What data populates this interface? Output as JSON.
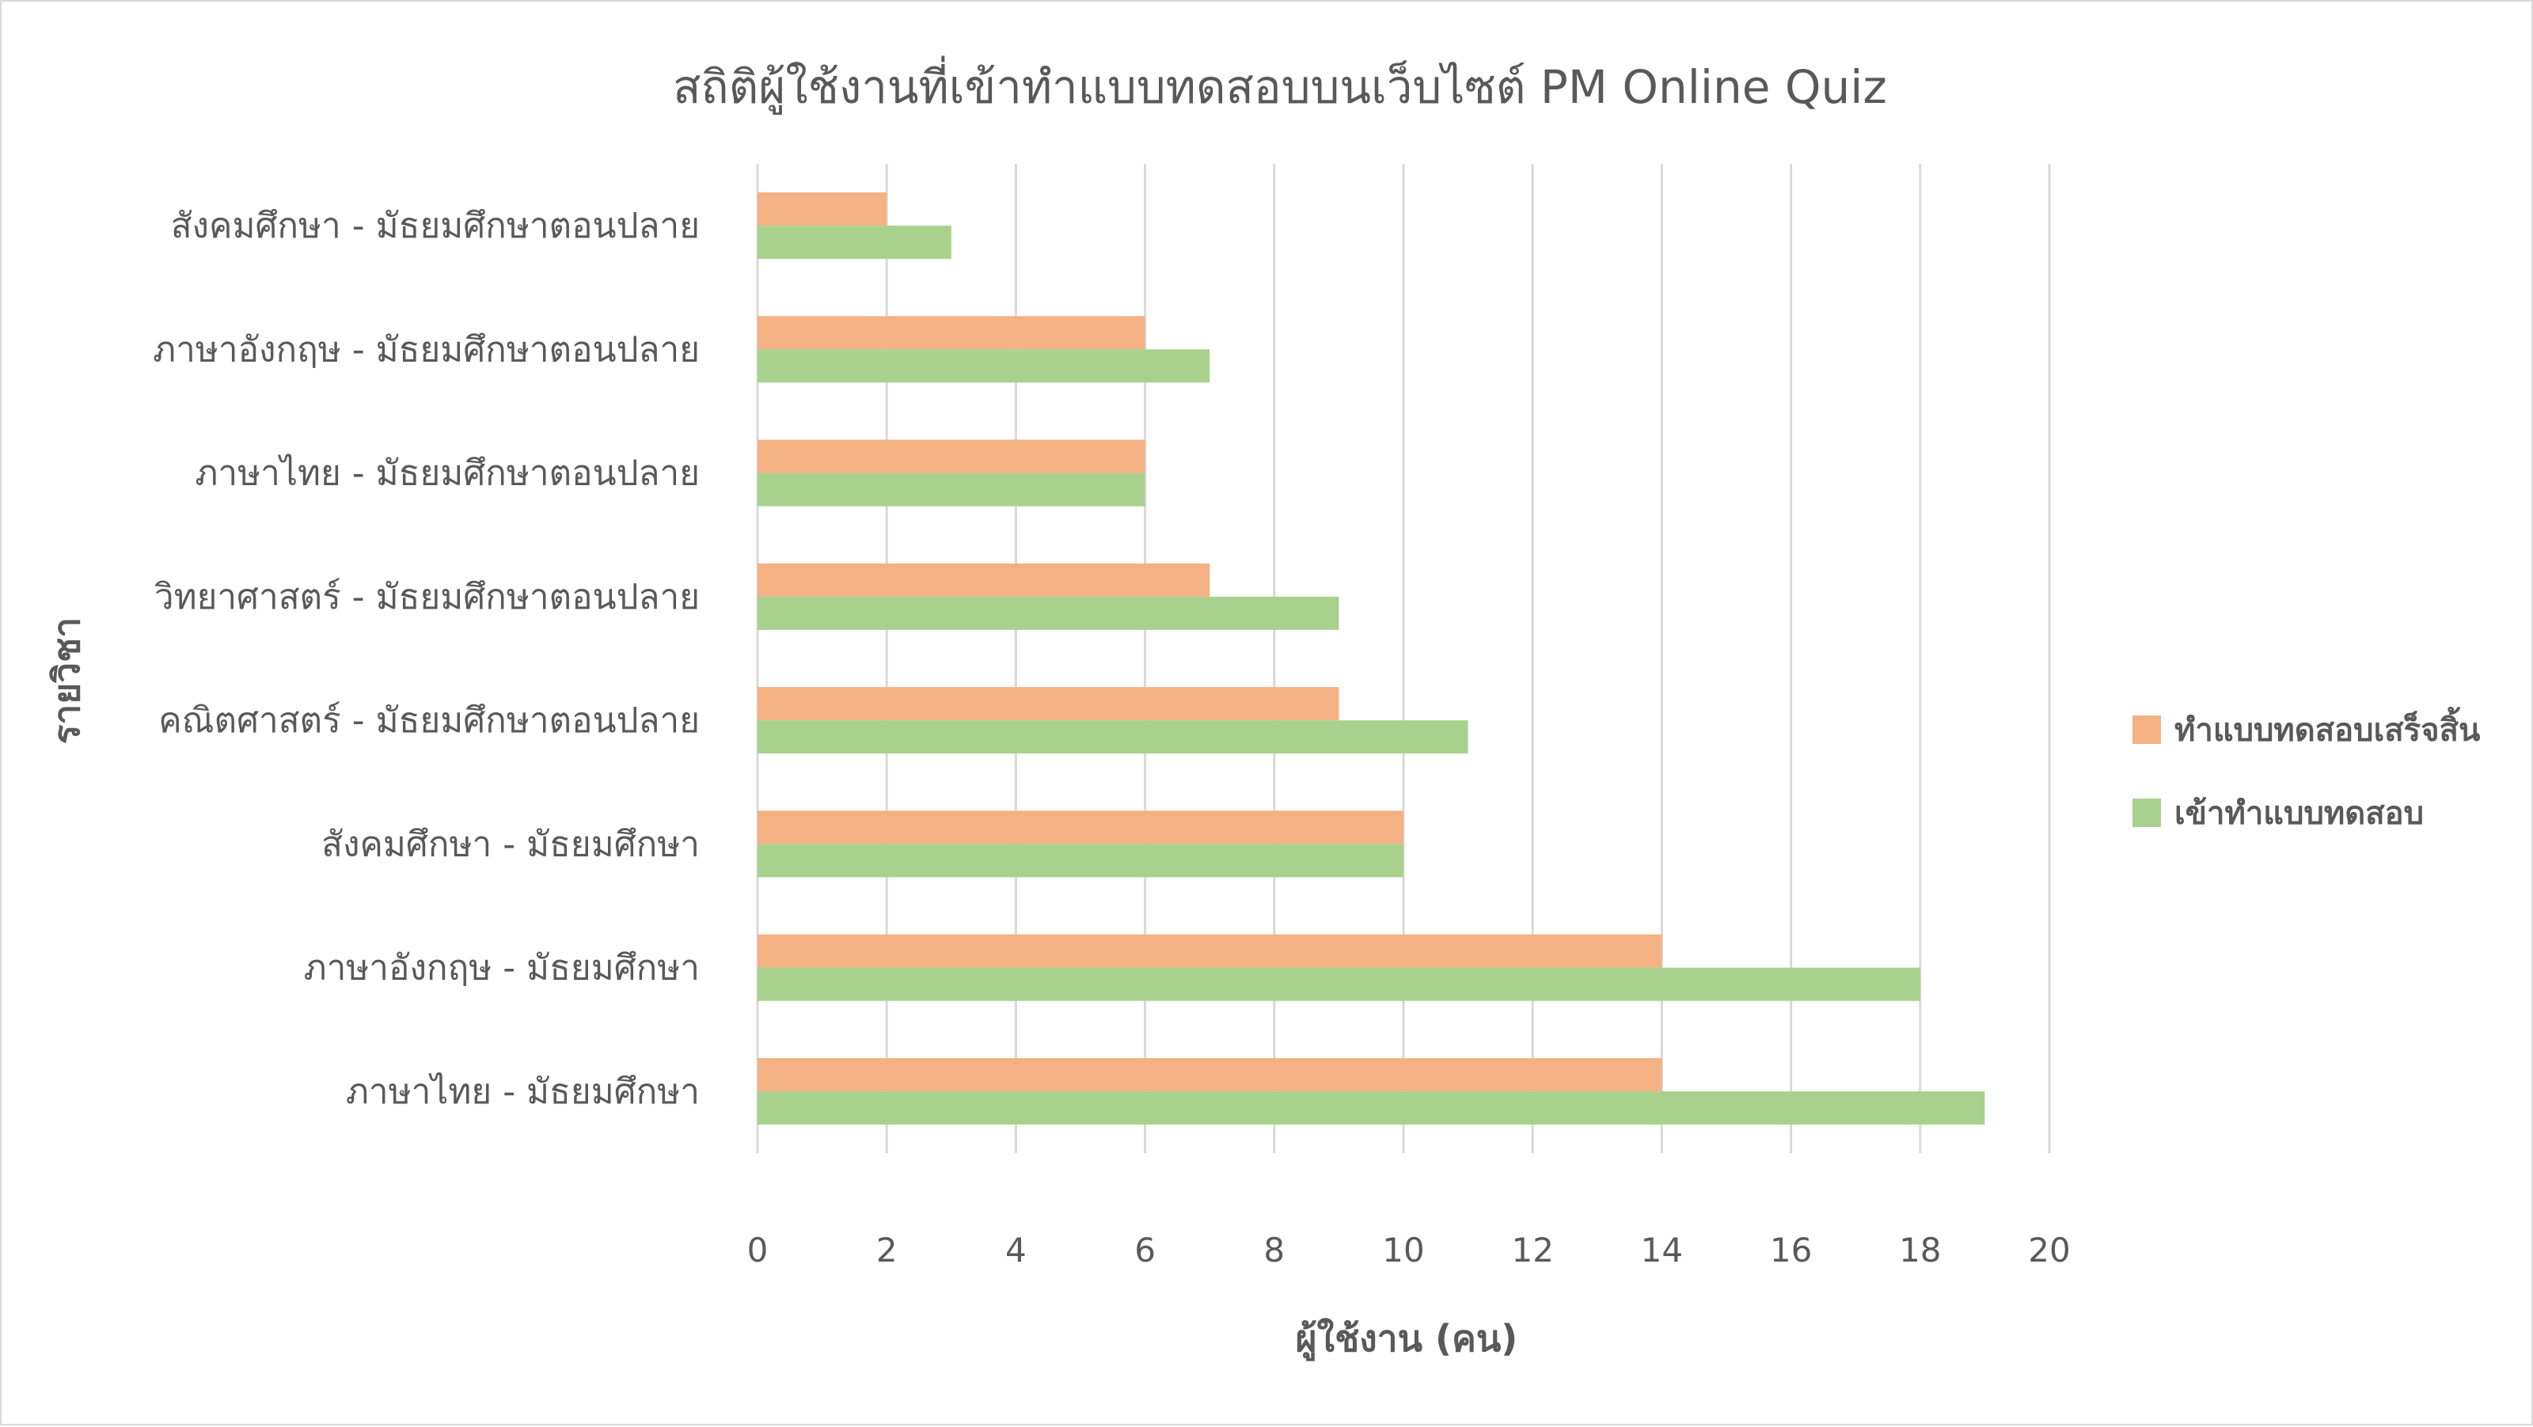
{
  "chart_data": {
    "type": "bar",
    "orientation": "horizontal",
    "title": "สถิติผู้ใช้งานที่เข้าทำแบบทดสอบบนเว็บไซต์ PM Online Quiz",
    "xlabel": "ผู้ใช้งาน (คน)",
    "ylabel": "รายวิชา",
    "xlim": [
      0,
      20
    ],
    "xticks": [
      "0",
      "2",
      "4",
      "6",
      "8",
      "10",
      "12",
      "14",
      "16",
      "18",
      "20"
    ],
    "grid": "vertical",
    "legend_position": "right",
    "categories": [
      "สังคมศึกษา - มัธยมศึกษาตอนปลาย",
      "ภาษาอังกฤษ - มัธยมศึกษาตอนปลาย",
      "ภาษาไทย - มัธยมศึกษาตอนปลาย",
      "วิทยาศาสตร์ - มัธยมศึกษาตอนปลาย",
      "คณิตศาสตร์ - มัธยมศึกษาตอนปลาย",
      "สังคมศึกษา - มัธยมศึกษา",
      "ภาษาอังกฤษ - มัธยมศึกษา",
      "ภาษาไทย - มัธยมศึกษา"
    ],
    "series": [
      {
        "name": "ทำแบบทดสอบเสร็จสิ้น",
        "color": "#f4b183",
        "values": [
          2,
          6,
          6,
          7,
          9,
          10,
          14,
          14
        ]
      },
      {
        "name": "เข้าทำแบบทดสอบ",
        "color": "#a9d18e",
        "values": [
          3,
          7,
          6,
          9,
          11,
          10,
          18,
          19
        ]
      }
    ]
  }
}
